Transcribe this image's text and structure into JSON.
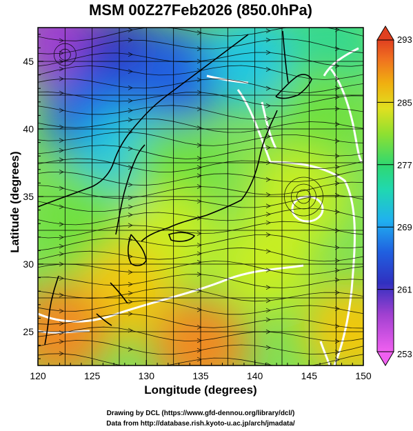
{
  "title": "MSM 00Z27Feb2026 (850.0hPa)",
  "footer": {
    "line1": "Drawing by DCL (https://www.gfd-dennou.org/library/dcl/)",
    "line2": "Data from http://database.rish.kyoto-u.ac.jp/arch/jmadata/"
  },
  "colors": {
    "scale": [
      "#f060f0",
      "#a040d0",
      "#3030c0",
      "#2060e0",
      "#20c8e0",
      "#30d890",
      "#70e040",
      "#c8ee20",
      "#f0c810",
      "#f08a20",
      "#e05020"
    ],
    "contour": "#ffffff",
    "streamline": "#000000",
    "coastline": "#000000"
  },
  "chart_data": {
    "type": "heatmap",
    "title": "MSM 00Z27Feb2026 (850.0hPa)",
    "xlabel": "Longitude (degrees)",
    "ylabel": "Latitude  (degrees)",
    "xlim": [
      120,
      150
    ],
    "ylim": [
      22.5,
      47.5
    ],
    "xticks": [
      "120",
      "125",
      "130",
      "135",
      "140",
      "145",
      "150"
    ],
    "yticks": [
      "25",
      "30",
      "35",
      "40",
      "45"
    ],
    "grid": true,
    "colorbar": {
      "ticks": [
        "293",
        "285",
        "277",
        "269",
        "261",
        "253"
      ],
      "range": [
        253,
        293
      ]
    },
    "temperature_field": [
      {
        "lon": 122,
        "lat": 46.5,
        "value": 255
      },
      {
        "lon": 128,
        "lat": 45,
        "value": 262
      },
      {
        "lon": 133,
        "lat": 44,
        "value": 264
      },
      {
        "lon": 125,
        "lat": 41,
        "value": 266
      },
      {
        "lon": 128,
        "lat": 38,
        "value": 270
      },
      {
        "lon": 140,
        "lat": 45,
        "value": 268
      },
      {
        "lon": 147,
        "lat": 46,
        "value": 272
      },
      {
        "lon": 146,
        "lat": 41,
        "value": 278
      },
      {
        "lon": 133,
        "lat": 37,
        "value": 277
      },
      {
        "lon": 124,
        "lat": 33,
        "value": 276
      },
      {
        "lon": 132,
        "lat": 32,
        "value": 279
      },
      {
        "lon": 144,
        "lat": 35,
        "value": 279
      },
      {
        "lon": 141,
        "lat": 30,
        "value": 282
      },
      {
        "lon": 128,
        "lat": 28,
        "value": 283
      },
      {
        "lon": 122,
        "lat": 25,
        "value": 287
      },
      {
        "lon": 135,
        "lat": 24,
        "value": 288
      },
      {
        "lon": 149,
        "lat": 25,
        "value": 286
      }
    ],
    "features": [
      "temperature shading",
      "streamlines",
      "coastlines",
      "white contours"
    ]
  }
}
